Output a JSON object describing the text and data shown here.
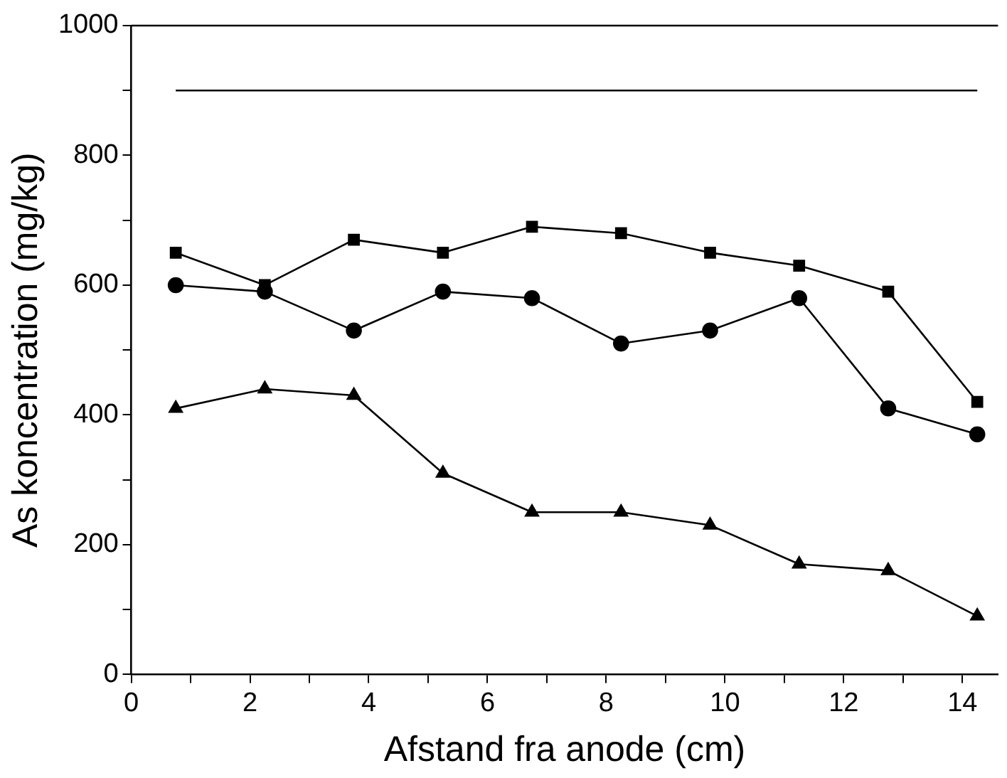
{
  "chart_data": {
    "type": "line",
    "xlabel": "Afstand fra anode (cm)",
    "ylabel": "As koncentration (mg/kg)",
    "x": [
      0.75,
      2.25,
      3.75,
      5.25,
      6.75,
      8.25,
      9.75,
      11.25,
      12.75,
      14.25
    ],
    "series": [
      {
        "color": "#000000",
        "marker": "square",
        "values": [
          650,
          600,
          670,
          650,
          690,
          680,
          650,
          630,
          590,
          420
        ]
      },
      {
        "color": "#000000",
        "marker": "circle",
        "values": [
          600,
          590,
          530,
          590,
          580,
          510,
          530,
          580,
          410,
          370
        ]
      },
      {
        "color": "#000000",
        "marker": "triangle",
        "values": [
          410,
          440,
          430,
          310,
          250,
          250,
          230,
          170,
          160,
          90
        ]
      }
    ],
    "xlim": [
      0,
      14.6
    ],
    "xticks": [
      0,
      {
        "value": 1,
        "label": null
      },
      2,
      {
        "value": 3,
        "label": null
      },
      4,
      {
        "value": 5,
        "label": null
      },
      6,
      {
        "value": 7,
        "label": null
      },
      8,
      {
        "value": 9,
        "label": null
      },
      10,
      {
        "value": 11,
        "label": null
      },
      12,
      {
        "value": 13,
        "label": null
      },
      14
    ],
    "ylim": [
      0,
      1000
    ],
    "yticks": [
      0,
      {
        "value": 100,
        "label": null
      },
      200,
      {
        "value": 300,
        "label": null
      },
      400,
      {
        "value": 500,
        "label": null
      },
      600,
      {
        "value": 700,
        "label": null
      },
      800,
      {
        "value": 900,
        "label": null
      },
      1000
    ],
    "ref_lines": [
      {
        "axis": "y",
        "value": 900,
        "color": "#000000"
      }
    ],
    "grid": false,
    "legend": false,
    "line_style": "solid"
  }
}
